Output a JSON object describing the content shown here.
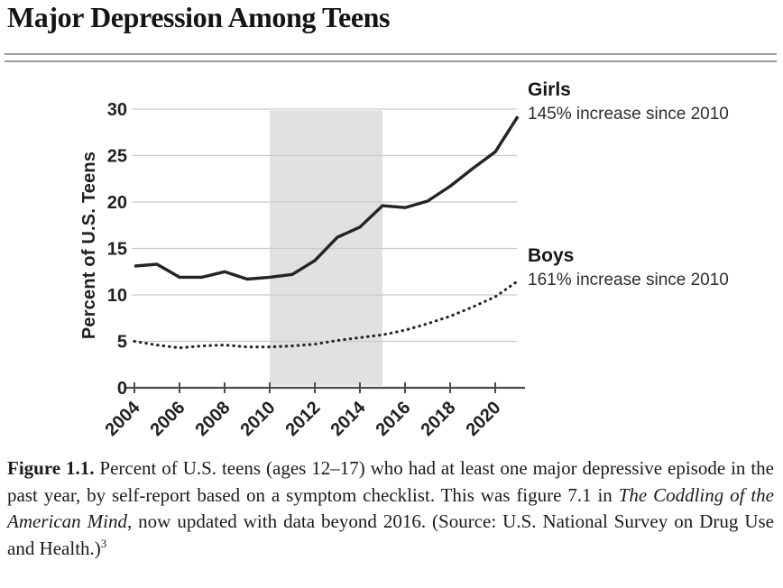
{
  "page": {
    "title": "Major Depression Among Teens"
  },
  "chart_data": {
    "type": "line",
    "ylabel": "Percent of U.S. Teens",
    "xlim": [
      2004,
      2021
    ],
    "ylim": [
      0,
      30
    ],
    "grid": true,
    "x": [
      2004,
      2005,
      2006,
      2007,
      2008,
      2009,
      2010,
      2011,
      2012,
      2013,
      2014,
      2015,
      2016,
      2017,
      2018,
      2019,
      2020,
      2021
    ],
    "series": [
      {
        "name": "Girls",
        "style": "solid",
        "annotation": "145% increase since 2010",
        "values": [
          13.1,
          13.3,
          11.9,
          11.9,
          12.5,
          11.7,
          11.9,
          12.2,
          13.7,
          16.2,
          17.3,
          19.6,
          19.4,
          20.1,
          21.7,
          23.6,
          25.4,
          29.2
        ]
      },
      {
        "name": "Boys",
        "style": "dotted",
        "annotation": "161% increase since 2010",
        "values": [
          5.0,
          4.6,
          4.3,
          4.5,
          4.6,
          4.4,
          4.4,
          4.5,
          4.7,
          5.1,
          5.4,
          5.7,
          6.2,
          6.9,
          7.7,
          8.7,
          9.8,
          11.5
        ]
      }
    ],
    "yticks": [
      0,
      5,
      10,
      15,
      20,
      25,
      30
    ],
    "xticks": [
      2004,
      2006,
      2008,
      2010,
      2012,
      2014,
      2016,
      2018,
      2020
    ],
    "shaded_region": {
      "from": 2010,
      "to": 2015
    },
    "legend_position": "right-of-line-ends",
    "colors": {
      "line": "#242424",
      "grid": "#c9c9c9",
      "band": "#e1e1e3",
      "axis": "#4d4d4d"
    }
  },
  "caption": {
    "figure_label": "Figure 1.1.",
    "text_before_title": " Percent of U.S. teens (ages 12–17) who had at least one major depressive episode in the past year, by self-report based on a symptom checklist. This was figure 7.1 in ",
    "book_title": "The Coddling of the American Mind",
    "text_after_title": ", now updated with data beyond 2016. (Source: U.S. National Survey on Drug Use and Health.)",
    "footnote_marker": "3"
  }
}
